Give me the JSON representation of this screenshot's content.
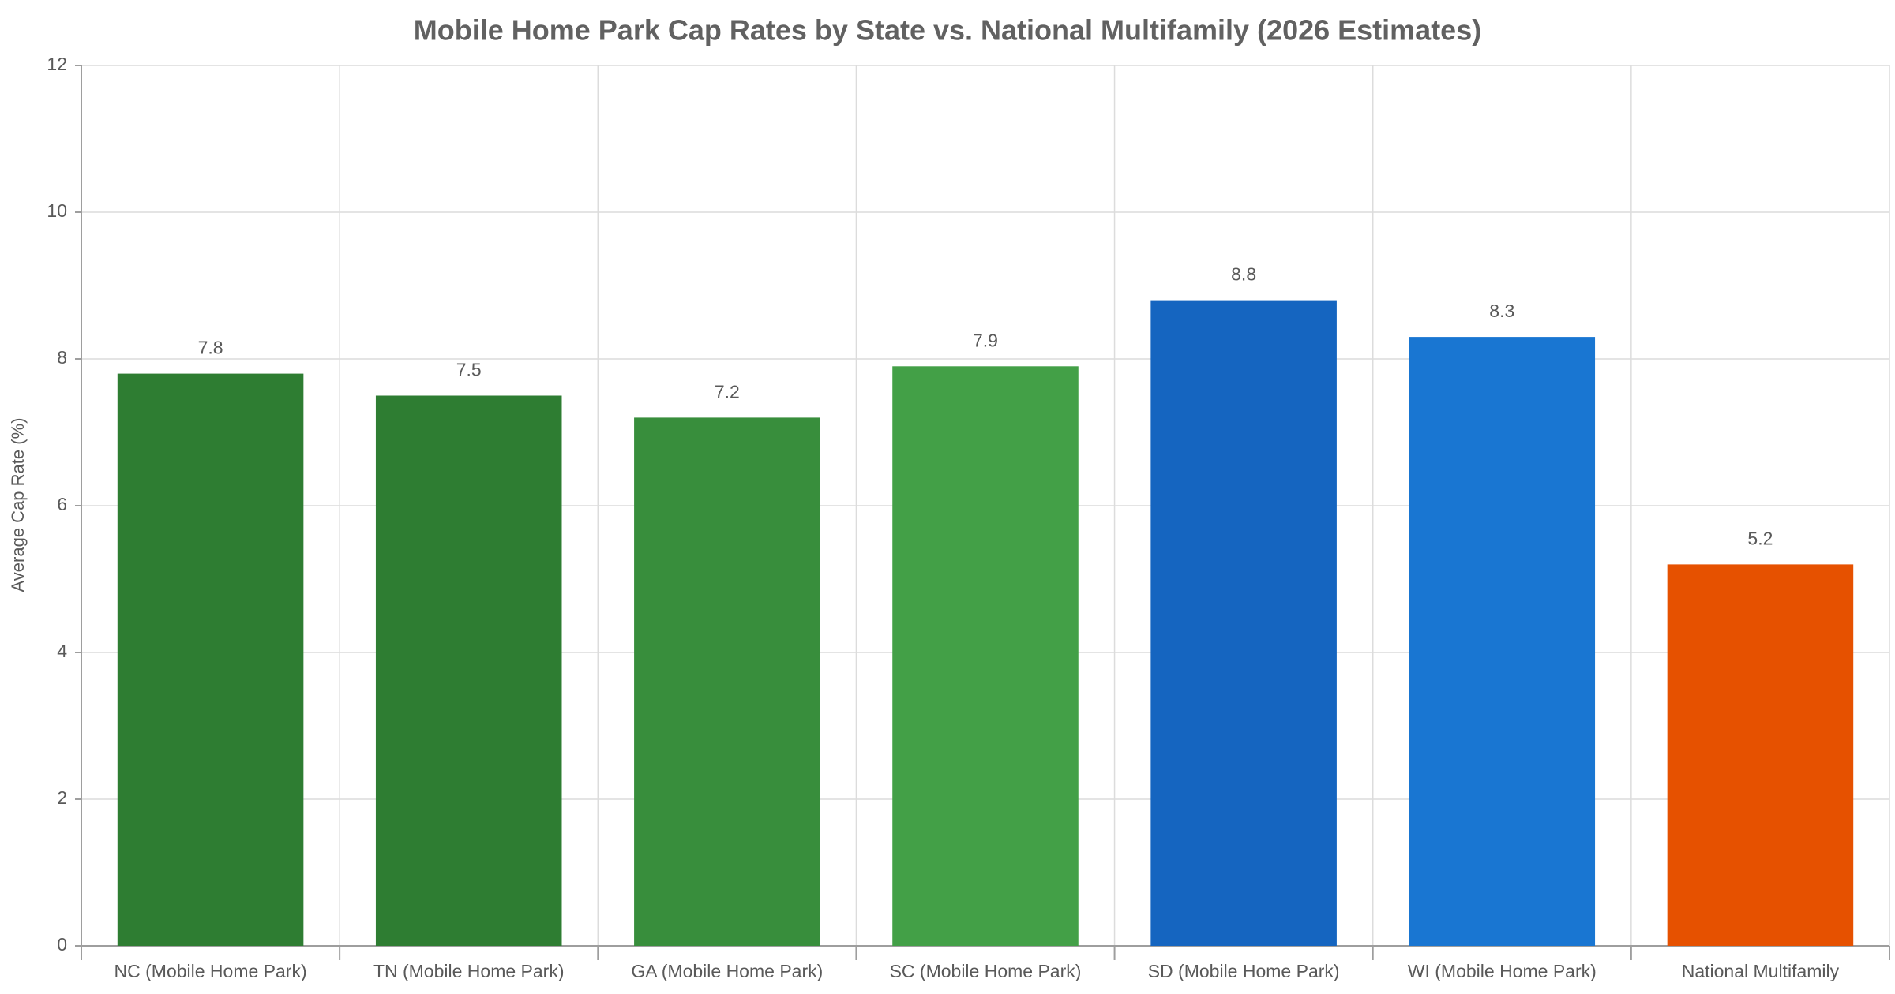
{
  "chart_data": {
    "type": "bar",
    "title": "Mobile Home Park Cap Rates by State vs. National Multifamily (2026 Estimates)",
    "y_label": "Average Cap Rate (%)",
    "categories": [
      "NC (Mobile Home Park)",
      "TN (Mobile Home Park)",
      "GA (Mobile Home Park)",
      "SC (Mobile Home Park)",
      "SD (Mobile Home Park)",
      "WI (Mobile Home Park)",
      "National Multifamily"
    ],
    "values": [
      7.8,
      7.5,
      7.2,
      7.9,
      8.8,
      8.3,
      5.2
    ],
    "colors": [
      "#2e7d32",
      "#2e7d32",
      "#388e3c",
      "#43a047",
      "#1565c0",
      "#1976d2",
      "#e65100"
    ],
    "ylim": [
      0,
      12
    ],
    "yticks": [
      0,
      2,
      4,
      6,
      8,
      10,
      12
    ],
    "grid": true
  }
}
